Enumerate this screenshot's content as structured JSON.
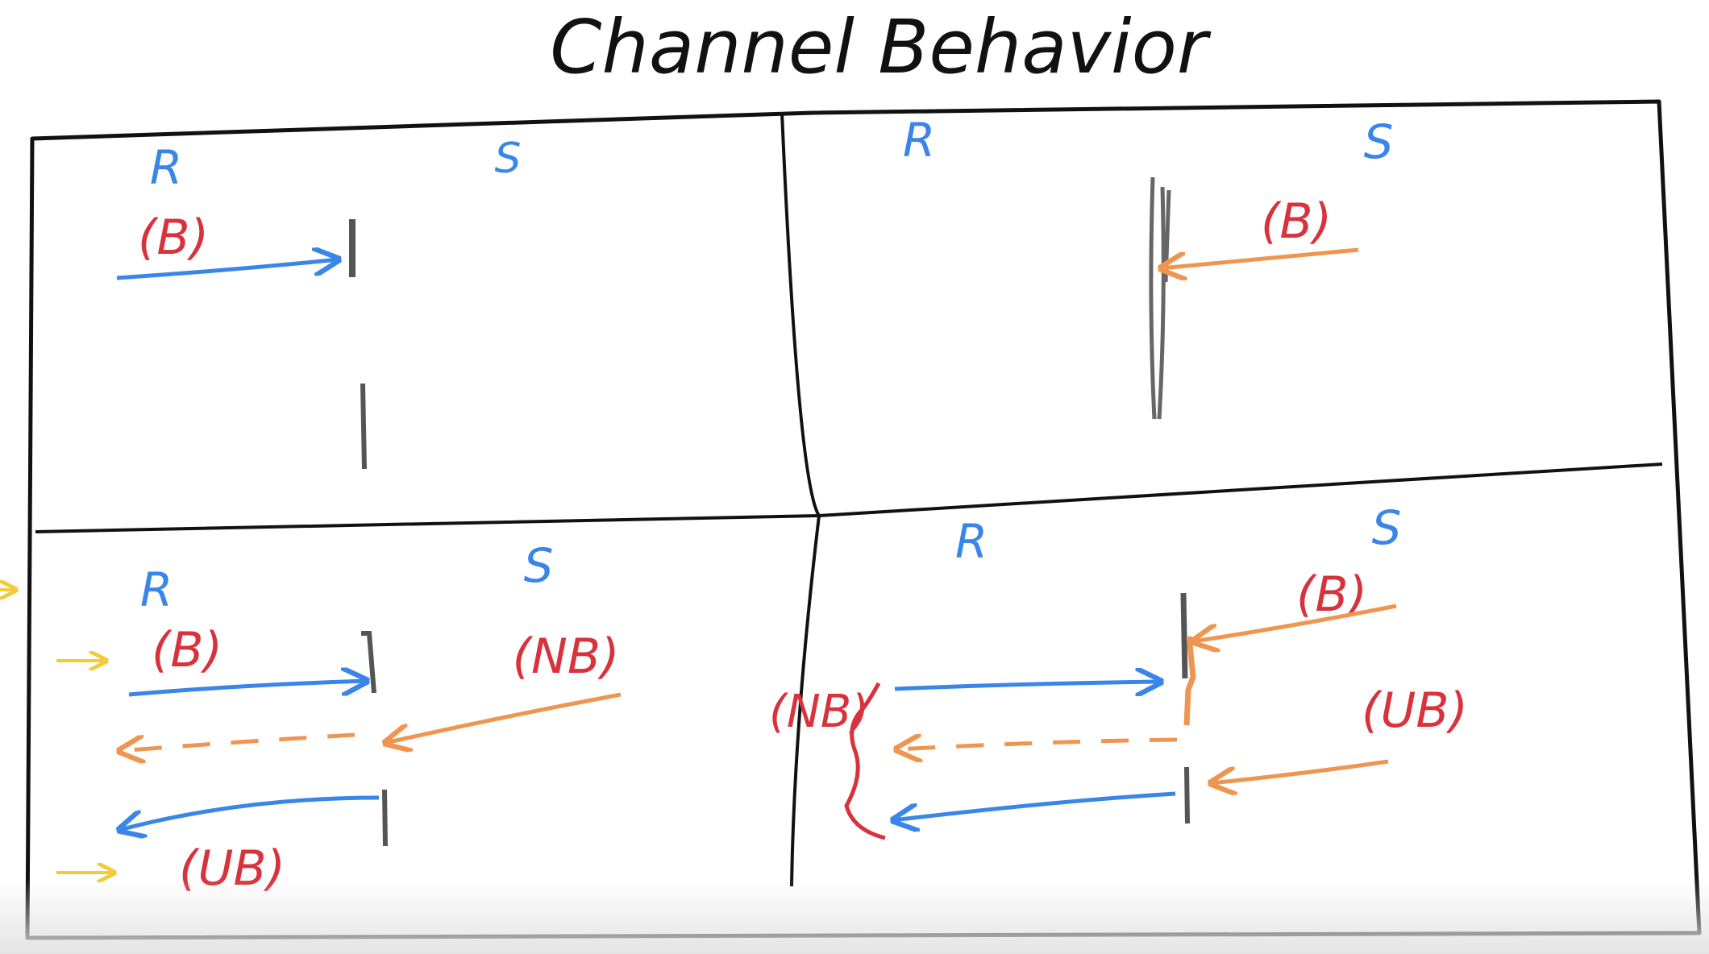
{
  "title": "Channel Behavior",
  "colors": {
    "frame": "#111111",
    "receiver": "#3a86e8",
    "sender": "#3a86e8",
    "blocking_label": "#d8323c",
    "send_arrow": "#ef9550",
    "receive_arrow": "#3a86e8",
    "channel_bar": "#555555",
    "pointer": "#f2cb3a"
  },
  "quadrants": {
    "top_left": {
      "receiver": "R",
      "sender": "S",
      "labels": [
        "(B)"
      ]
    },
    "top_right": {
      "receiver": "R",
      "sender": "S",
      "labels": [
        "(B)"
      ]
    },
    "bottom_left": {
      "receiver": "R",
      "sender": "S",
      "labels": [
        "(B)",
        "(NB)",
        "(UB)"
      ]
    },
    "bottom_right": {
      "receiver": "R",
      "sender": "S",
      "labels": [
        "(B)",
        "(UB)",
        "(NB)"
      ]
    }
  },
  "icons": [
    "pointer-arrow-icon"
  ]
}
